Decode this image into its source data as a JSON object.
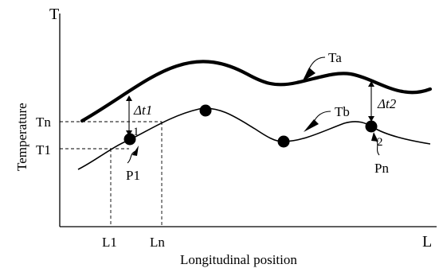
{
  "axes": {
    "y_letter": "T",
    "x_end": "L",
    "y_title": "Temperature",
    "x_title": "Longitudinal position"
  },
  "tick_labels": {
    "tn": "Tn",
    "t1": "T1",
    "l1": "L1",
    "ln": "Ln"
  },
  "curves": {
    "upper": "Ta",
    "lower": "Tb"
  },
  "differences": {
    "d1": "Δt1",
    "d2": "Δt2"
  },
  "points": {
    "p1": "P1",
    "pn": "Pn",
    "marker_1": "1",
    "marker_2": "2"
  }
}
